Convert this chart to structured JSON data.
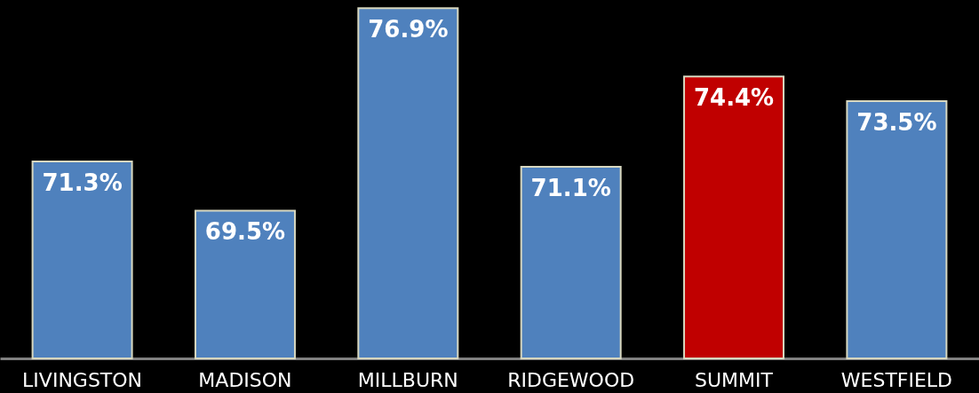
{
  "chart_data": {
    "type": "bar",
    "categories": [
      "LIVINGSTON",
      "MADISON",
      "MILLBURN",
      "RIDGEWOOD",
      "SUMMIT",
      "WESTFIELD"
    ],
    "values": [
      71.3,
      69.5,
      76.9,
      71.1,
      74.4,
      73.5
    ],
    "colors": [
      "#4f81bd",
      "#4f81bd",
      "#4f81bd",
      "#4f81bd",
      "#c00000",
      "#4f81bd"
    ],
    "value_labels": [
      "71.3%",
      "69.5%",
      "76.9%",
      "71.1%",
      "74.4%",
      "73.5%"
    ],
    "ylim": [
      64.1,
      77.2
    ],
    "grid": false
  }
}
